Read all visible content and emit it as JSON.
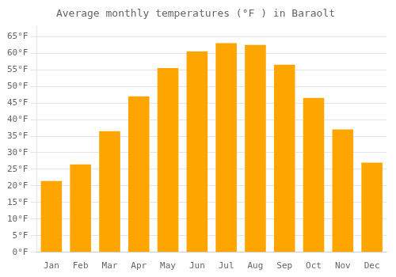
{
  "chart_data": {
    "type": "bar",
    "title": "Average monthly temperatures (°F ) in Baraolt",
    "categories": [
      "Jan",
      "Feb",
      "Mar",
      "Apr",
      "May",
      "Jun",
      "Jul",
      "Aug",
      "Sep",
      "Oct",
      "Nov",
      "Dec"
    ],
    "values": [
      21.5,
      26.5,
      36.5,
      47.0,
      55.5,
      60.5,
      63.0,
      62.5,
      56.5,
      46.5,
      37.0,
      27.0
    ],
    "color": "#FFA500",
    "ylim": [
      0,
      68
    ],
    "yticks": [
      {
        "value": 0,
        "label": "0°F"
      },
      {
        "value": 5,
        "label": "5°F"
      },
      {
        "value": 10,
        "label": "10°F"
      },
      {
        "value": 15,
        "label": "15°F"
      },
      {
        "value": 20,
        "label": "20°F"
      },
      {
        "value": 25,
        "label": "25°F"
      },
      {
        "value": 30,
        "label": "30°F"
      },
      {
        "value": 35,
        "label": "35°F"
      },
      {
        "value": 40,
        "label": "40°F"
      },
      {
        "value": 45,
        "label": "45°F"
      },
      {
        "value": 50,
        "label": "50°F"
      },
      {
        "value": 55,
        "label": "55°F"
      },
      {
        "value": 60,
        "label": "60°F"
      },
      {
        "value": 65,
        "label": "65°F"
      }
    ],
    "grid": true
  }
}
